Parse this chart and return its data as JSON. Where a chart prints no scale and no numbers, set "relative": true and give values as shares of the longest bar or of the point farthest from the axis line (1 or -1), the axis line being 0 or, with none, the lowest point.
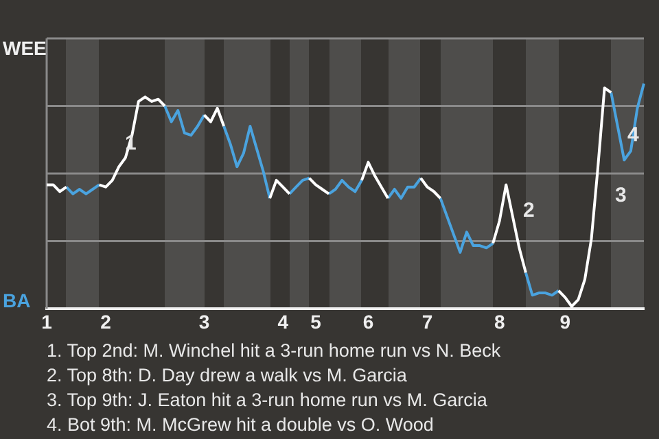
{
  "chart_data": {
    "type": "line",
    "relative": true,
    "categories": [
      "1",
      null,
      null,
      null,
      null,
      null,
      null,
      null,
      null,
      "2",
      null,
      null,
      null,
      null,
      null,
      null,
      null,
      null,
      null,
      null,
      null,
      null,
      null,
      null,
      "3",
      null,
      null,
      null,
      null,
      null,
      null,
      null,
      null,
      null,
      null,
      null,
      "4",
      null,
      null,
      null,
      null,
      "5",
      null,
      null,
      null,
      null,
      null,
      null,
      null,
      "6",
      null,
      null,
      null,
      null,
      null,
      null,
      null,
      null,
      "7",
      null,
      null,
      null,
      null,
      null,
      null,
      null,
      null,
      null,
      null,
      "8",
      null,
      null,
      null,
      null,
      null,
      null,
      null,
      null,
      null,
      "9",
      null,
      null,
      null,
      null,
      null,
      null,
      null,
      null,
      null,
      null,
      null,
      null
    ],
    "series": [
      {
        "color": "#ffffff",
        "values": [
          0.55,
          0.55,
          0.52,
          0.54,
          null,
          null,
          null,
          null,
          0.55,
          0.54,
          0.57,
          0.63,
          0.67,
          0.77,
          0.92,
          0.94,
          0.92,
          0.93,
          0.9,
          null,
          null,
          null,
          null,
          null,
          0.86,
          0.83,
          0.89,
          0.81,
          null,
          null,
          null,
          null,
          null,
          null,
          0.49,
          0.57,
          0.54,
          0.51,
          null,
          null,
          0.58,
          0.55,
          0.53,
          0.51,
          null,
          null,
          null,
          null,
          0.57,
          0.65,
          0.59,
          0.54,
          0.49,
          null,
          null,
          null,
          null,
          0.58,
          0.54,
          0.52,
          0.49,
          null,
          null,
          null,
          null,
          null,
          null,
          null,
          0.29,
          0.39,
          0.55,
          0.41,
          0.27,
          0.16,
          null,
          null,
          null,
          null,
          0.08,
          0.05,
          0.01,
          0.04,
          0.13,
          0.31,
          0.63,
          0.98,
          0.96,
          null,
          null,
          null,
          null,
          null
        ]
      },
      {
        "color": "#4aa3df",
        "values": [
          null,
          null,
          null,
          0.54,
          0.51,
          0.53,
          0.51,
          0.53,
          0.55,
          null,
          null,
          null,
          null,
          null,
          null,
          null,
          null,
          null,
          0.9,
          0.83,
          0.88,
          0.78,
          0.77,
          0.81,
          0.86,
          null,
          null,
          0.81,
          0.73,
          0.63,
          0.69,
          0.81,
          0.71,
          0.61,
          0.49,
          null,
          null,
          0.51,
          0.54,
          0.57,
          0.58,
          null,
          null,
          0.51,
          0.53,
          0.57,
          0.54,
          0.52,
          0.57,
          null,
          null,
          null,
          0.49,
          0.53,
          0.49,
          0.54,
          0.54,
          0.58,
          null,
          null,
          0.49,
          0.41,
          0.33,
          0.25,
          0.34,
          0.28,
          0.28,
          0.27,
          0.29,
          null,
          null,
          null,
          null,
          0.16,
          0.06,
          0.07,
          0.07,
          0.06,
          0.08,
          null,
          null,
          null,
          null,
          null,
          null,
          null,
          0.96,
          0.81,
          0.66,
          0.7,
          0.89,
          1
        ]
      }
    ],
    "grid": "y",
    "legend": false,
    "marker": "none",
    "line_style": "solid",
    "annotations": [
      "WEE",
      "BA",
      "1",
      "2",
      "3",
      "4",
      "1. Top 2nd: M. Winchel hit a 3-run home run vs N. Beck",
      "2. Top 8th: D. Day drew a walk vs M. Garcia",
      "3. Top 9th: J. Eaton hit a 3-run home run vs M. Garcia",
      "4. Bot 9th: M. McGrew hit a double vs O. Wood"
    ]
  }
}
